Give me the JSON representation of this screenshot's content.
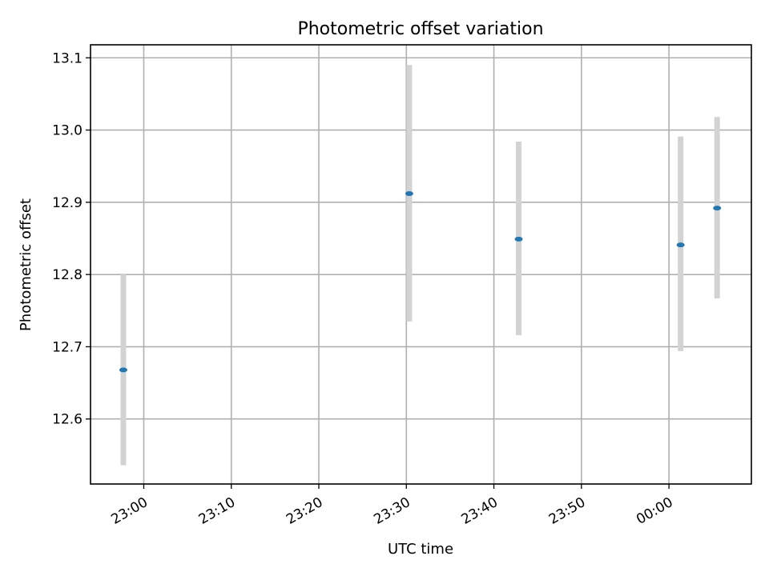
{
  "chart_data": {
    "type": "scatter",
    "title": "Photometric offset variation",
    "xlabel": "UTC time",
    "ylabel": "Photometric offset",
    "x_axis_type": "time",
    "xlim": [
      "22:53:55",
      "00:09:25"
    ],
    "ylim": [
      12.51,
      13.118
    ],
    "x_ticks": [
      "23:00",
      "23:10",
      "23:20",
      "23:30",
      "23:40",
      "23:50",
      "00:00"
    ],
    "y_ticks": [
      12.6,
      12.7,
      12.8,
      12.9,
      13.0,
      13.1
    ],
    "y_tick_labels": [
      "12.6",
      "12.7",
      "12.8",
      "12.9",
      "13.0",
      "13.1"
    ],
    "grid": true,
    "series": [
      {
        "x": [
          "22:57:40",
          "23:30:20",
          "23:42:50",
          "00:01:20",
          "00:05:30"
        ],
        "y": [
          12.668,
          12.912,
          12.849,
          12.841,
          12.892
        ],
        "yerr_low": [
          12.536,
          12.735,
          12.716,
          12.694,
          12.767
        ],
        "yerr_high": [
          12.8,
          13.09,
          12.984,
          12.991,
          13.018
        ]
      }
    ],
    "colors": {
      "marker": "#1f77b4",
      "errorbar": "#d3d3d3",
      "grid": "#b0b0b0"
    }
  }
}
